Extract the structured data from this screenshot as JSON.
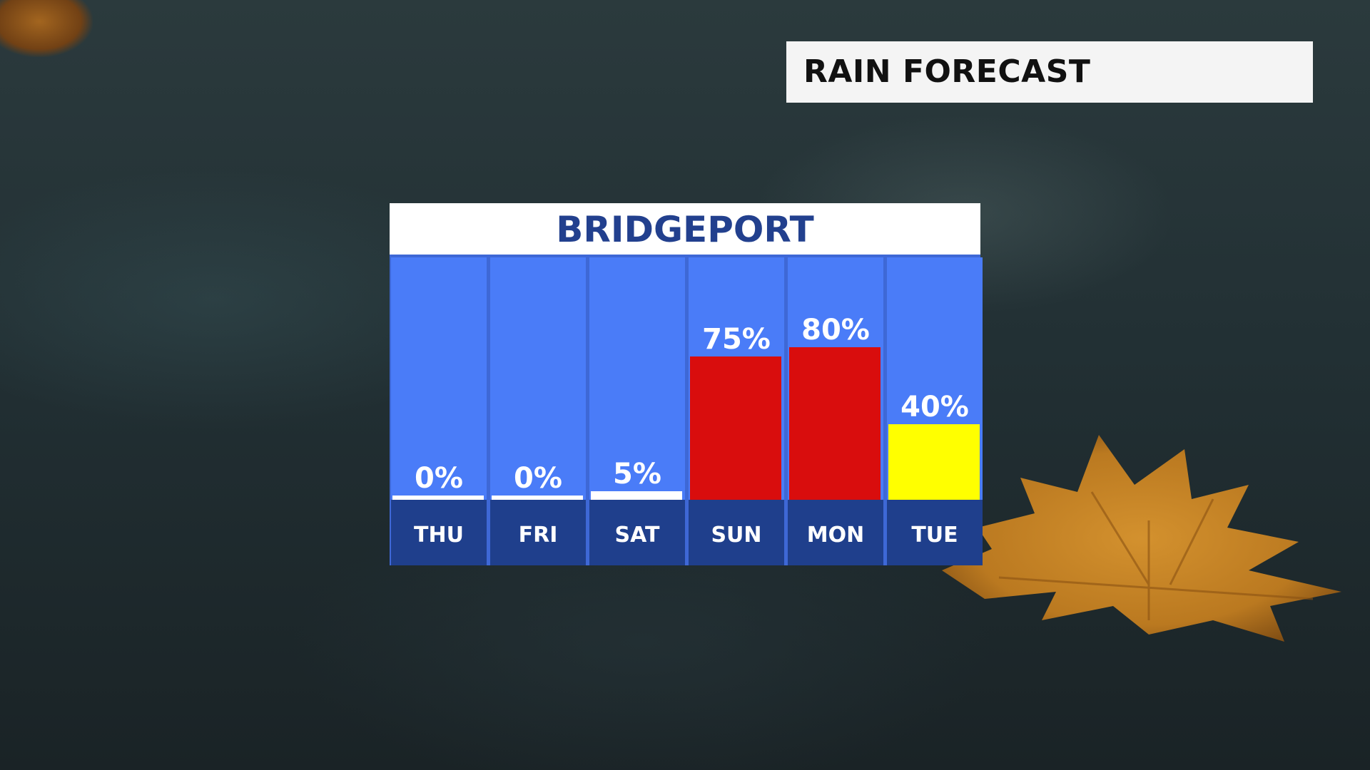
{
  "header": {
    "title": "RAIN FORECAST"
  },
  "colors": {
    "panel_blue": "#4a7cf8",
    "day_label_blue": "#1f3f8c",
    "city_text": "#22408e",
    "low": "#ffffff",
    "high": "#d90d0d",
    "medium": "#ffff00"
  },
  "chart_data": {
    "type": "bar",
    "title": "BRIDGEPORT",
    "categories": [
      "THU",
      "FRI",
      "SAT",
      "SUN",
      "MON",
      "TUE"
    ],
    "values": [
      0,
      0,
      5,
      75,
      80,
      40
    ],
    "value_labels": [
      "0%",
      "0%",
      "5%",
      "75%",
      "80%",
      "40%"
    ],
    "bar_colors": [
      "#ffffff",
      "#ffffff",
      "#ffffff",
      "#d90d0d",
      "#d90d0d",
      "#ffff00"
    ],
    "ylim": [
      0,
      100
    ],
    "xlabel": "",
    "ylabel": "",
    "grid": false,
    "legend": "none"
  }
}
